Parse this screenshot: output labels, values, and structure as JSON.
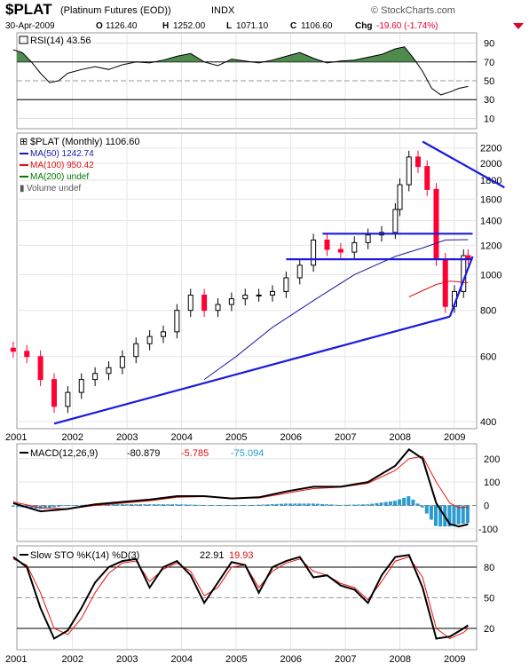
{
  "header": {
    "symbol": "$PLAT",
    "name": "(Platinum Futures (EOD))",
    "exchange": "INDX",
    "brand": "© StockCharts.com",
    "date": "30-Apr-2009",
    "open_label": "O",
    "open": "1126.40",
    "high_label": "H",
    "high": "1252.00",
    "low_label": "L",
    "low": "1071.10",
    "close_label": "C",
    "close": "1106.60",
    "chg_label": "Chg",
    "chg": "-19.60 (-1.74%)"
  },
  "colors": {
    "price_up": "#000000",
    "price_down": "#ff0033",
    "ma50": "#1a1aa6",
    "ma100": "#e01010",
    "ma200": "#007a00",
    "trendline": "#1a1ae0",
    "rsi_fill": "#4f8a4f",
    "macd_hist": "#2a9ad0",
    "macd_signal": "#ee1111",
    "stoch_d": "#ee1111"
  },
  "chart_data": [
    {
      "type": "line",
      "panel": "RSI",
      "label": "RSI(14) 43.56",
      "x": [
        "2000-12",
        "2001-02",
        "2001-04",
        "2001-06",
        "2001-08",
        "2001-10",
        "2001-12",
        "2002-03",
        "2002-06",
        "2002-09",
        "2002-12",
        "2003-03",
        "2003-06",
        "2003-09",
        "2003-12",
        "2004-03",
        "2004-06",
        "2004-09",
        "2004-12",
        "2005-03",
        "2005-06",
        "2005-09",
        "2005-12",
        "2006-03",
        "2006-06",
        "2006-09",
        "2006-12",
        "2007-03",
        "2007-06",
        "2007-09",
        "2007-12",
        "2008-02",
        "2008-04",
        "2008-06",
        "2008-08",
        "2008-10",
        "2008-12",
        "2009-02",
        "2009-04"
      ],
      "y": [
        83,
        80,
        70,
        58,
        48,
        50,
        58,
        62,
        65,
        62,
        67,
        70,
        69,
        72,
        76,
        79,
        70,
        66,
        73,
        71,
        69,
        72,
        76,
        80,
        74,
        69,
        71,
        72,
        75,
        78,
        84,
        86,
        74,
        60,
        42,
        35,
        38,
        42,
        44
      ],
      "ylim": [
        0,
        100
      ],
      "ticks": [
        10,
        30,
        50,
        70,
        90
      ]
    },
    {
      "type": "candlestick",
      "panel": "Price",
      "label": "$PLAT (Monthly) 1106.60",
      "y_scale": "log",
      "ylim": [
        385,
        2400
      ],
      "y_ticks": [
        400,
        600,
        800,
        1000,
        1200,
        1400,
        1600,
        1800,
        2000,
        2200
      ],
      "x_ticks": [
        "2001",
        "2002",
        "2003",
        "2004",
        "2005",
        "2006",
        "2007",
        "2008",
        "2009"
      ],
      "x": [
        "2000-12",
        "2001-03",
        "2001-06",
        "2001-09",
        "2001-12",
        "2002-03",
        "2002-06",
        "2002-09",
        "2002-12",
        "2003-03",
        "2003-06",
        "2003-09",
        "2003-12",
        "2004-03",
        "2004-06",
        "2004-09",
        "2004-12",
        "2005-03",
        "2005-06",
        "2005-09",
        "2005-12",
        "2006-03",
        "2006-06",
        "2006-09",
        "2006-12",
        "2007-03",
        "2007-06",
        "2007-09",
        "2007-12",
        "2008-01",
        "2008-03",
        "2008-05",
        "2008-07",
        "2008-09",
        "2008-11",
        "2009-01",
        "2009-03",
        "2009-04"
      ],
      "close": [
        620,
        600,
        520,
        440,
        480,
        520,
        540,
        560,
        600,
        650,
        680,
        700,
        800,
        880,
        800,
        830,
        860,
        880,
        880,
        900,
        980,
        1060,
        1240,
        1170,
        1150,
        1220,
        1280,
        1300,
        1500,
        1750,
        2080,
        1960,
        1700,
        1100,
        820,
        900,
        1125,
        1107
      ],
      "series": [
        {
          "name": "MA(50) 1242.74",
          "x": [
            "2004-06",
            "2005-01",
            "2005-09",
            "2006-06",
            "2007-03",
            "2007-12",
            "2008-06",
            "2008-11",
            "2009-04"
          ],
          "values": [
            520,
            600,
            720,
            850,
            1000,
            1120,
            1180,
            1240,
            1243
          ]
        },
        {
          "name": "MA(100) 950.42",
          "x": [
            "2008-03",
            "2008-09",
            "2008-12",
            "2009-04"
          ],
          "values": [
            870,
            940,
            960,
            950
          ]
        },
        {
          "name": "MA(200) undef",
          "x": [],
          "values": []
        },
        {
          "name": "Volume undef",
          "x": [],
          "values": []
        }
      ],
      "trendlines": [
        {
          "from": [
            "2001-09",
            395
          ],
          "to": [
            "2008-12",
            770
          ]
        },
        {
          "from": [
            "2006-08",
            1290
          ],
          "to": [
            "2009-05",
            1290
          ]
        },
        {
          "from": [
            "2005-12",
            1100
          ],
          "to": [
            "2009-05",
            1100
          ]
        },
        {
          "from": [
            "2008-06",
            2290
          ],
          "to": [
            "2009-12",
            1720
          ]
        },
        {
          "from": [
            "2008-12",
            770
          ],
          "to": [
            "2009-05",
            1120
          ]
        }
      ]
    },
    {
      "type": "line",
      "panel": "MACD",
      "label": "MACD(12,26,9)",
      "values_shown": {
        "macd": "-80.879",
        "signal": "-5.785",
        "hist": "-75.094"
      },
      "x": [
        "2000-12",
        "2001-06",
        "2001-12",
        "2002-06",
        "2002-12",
        "2003-06",
        "2003-12",
        "2004-06",
        "2004-12",
        "2005-06",
        "2005-12",
        "2006-06",
        "2006-12",
        "2007-06",
        "2007-12",
        "2008-03",
        "2008-06",
        "2008-09",
        "2008-12",
        "2009-02",
        "2009-04"
      ],
      "series": [
        {
          "name": "MACD",
          "values": [
            10,
            -25,
            -15,
            5,
            15,
            25,
            40,
            40,
            30,
            35,
            60,
            80,
            80,
            100,
            170,
            240,
            200,
            10,
            -80,
            -90,
            -80
          ]
        },
        {
          "name": "Signal",
          "values": [
            15,
            -10,
            -15,
            0,
            10,
            20,
            35,
            38,
            32,
            32,
            52,
            72,
            78,
            95,
            150,
            200,
            210,
            100,
            10,
            -10,
            -6
          ]
        },
        {
          "name": "Histogram",
          "values": [
            -5,
            -15,
            0,
            5,
            5,
            5,
            5,
            2,
            -2,
            3,
            8,
            8,
            2,
            5,
            20,
            40,
            -10,
            -90,
            -90,
            -80,
            -75
          ]
        }
      ],
      "ylim": [
        -150,
        260
      ],
      "ticks": [
        -100,
        0,
        100,
        200
      ]
    },
    {
      "type": "line",
      "panel": "Stochastic",
      "label": "Slow STO %K(14) %D(3)",
      "values_shown": {
        "k": "22.91",
        "d": "19.93"
      },
      "x_ticks": [
        "2001",
        "2002",
        "2003",
        "2004",
        "2005",
        "2006",
        "2007",
        "2008",
        "2009"
      ],
      "x": [
        "2000-12",
        "2001-03",
        "2001-06",
        "2001-09",
        "2001-12",
        "2002-03",
        "2002-06",
        "2002-09",
        "2002-12",
        "2003-03",
        "2003-06",
        "2003-09",
        "2003-12",
        "2004-03",
        "2004-06",
        "2004-09",
        "2004-12",
        "2005-03",
        "2005-06",
        "2005-09",
        "2005-12",
        "2006-03",
        "2006-06",
        "2006-09",
        "2006-12",
        "2007-03",
        "2007-06",
        "2007-09",
        "2007-12",
        "2008-03",
        "2008-06",
        "2008-09",
        "2008-12",
        "2009-03",
        "2009-04"
      ],
      "series": [
        {
          "name": "%K",
          "values": [
            90,
            80,
            40,
            10,
            18,
            40,
            65,
            80,
            86,
            88,
            60,
            80,
            86,
            72,
            45,
            65,
            85,
            82,
            55,
            80,
            86,
            90,
            70,
            72,
            62,
            58,
            45,
            72,
            90,
            92,
            60,
            10,
            12,
            20,
            23
          ]
        },
        {
          "name": "%D",
          "values": [
            88,
            82,
            55,
            20,
            14,
            30,
            55,
            74,
            84,
            86,
            66,
            78,
            84,
            76,
            52,
            60,
            80,
            82,
            60,
            76,
            84,
            88,
            76,
            72,
            64,
            60,
            48,
            66,
            86,
            90,
            70,
            20,
            10,
            16,
            20
          ]
        }
      ],
      "ylim": [
        0,
        100
      ],
      "ticks": [
        20,
        50,
        80
      ]
    }
  ]
}
